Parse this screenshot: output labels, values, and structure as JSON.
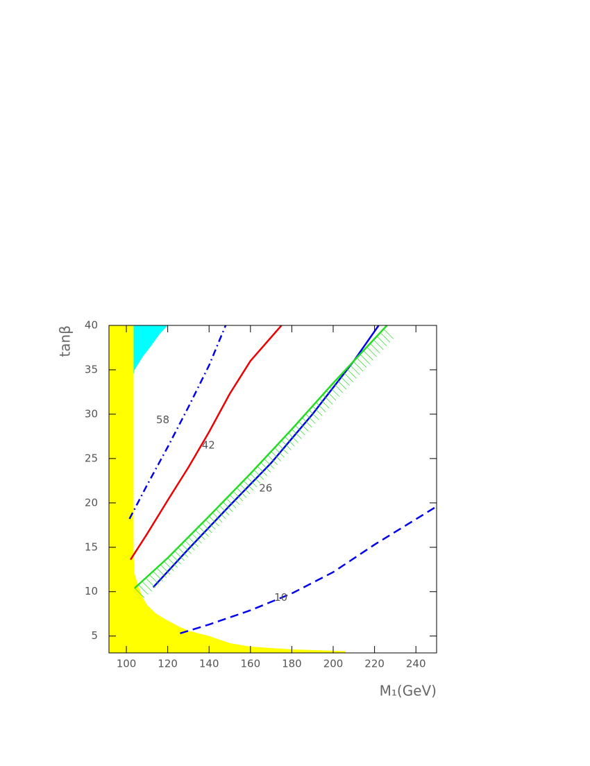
{
  "chart_data": {
    "type": "line",
    "xlabel": "M₁(GeV)",
    "ylabel": "tanβ",
    "xlim": [
      91.6,
      250
    ],
    "ylim": [
      3.1,
      40
    ],
    "xticks": [
      100,
      120,
      140,
      160,
      180,
      200,
      220,
      240
    ],
    "yticks": [
      5,
      10,
      15,
      20,
      25,
      30,
      35,
      40
    ],
    "regions": [
      {
        "color": "#ffff00",
        "x": [
          91.6,
          103.5,
          103.5,
          104,
          106,
          108,
          110,
          114,
          118,
          122,
          126,
          130,
          140,
          150,
          160,
          180,
          206,
          206,
          91.6
        ],
        "y": [
          40,
          40,
          14,
          12,
          10.5,
          9.3,
          8.5,
          7.6,
          7,
          6.5,
          6,
          5.6,
          5,
          4.2,
          3.8,
          3.5,
          3.3,
          3.1,
          3.1
        ]
      },
      {
        "color": "#00ffff",
        "x": [
          103.5,
          120,
          116,
          112,
          108,
          104,
          103.5
        ],
        "y": [
          40,
          40,
          39,
          37.7,
          36.5,
          35,
          34.5
        ]
      }
    ],
    "series": [
      {
        "name": "58",
        "color": "#0000ee",
        "dash": "dashdot",
        "x": [
          101.5,
          110,
          120,
          130,
          140,
          148
        ],
        "values": [
          18.2,
          22,
          26.3,
          30.8,
          35.5,
          40
        ]
      },
      {
        "name": "42",
        "color": "#ee0000",
        "dash": "solid",
        "x": [
          102,
          110,
          120,
          130,
          140,
          150,
          160,
          175
        ],
        "values": [
          13.6,
          16.5,
          20.3,
          24,
          28,
          32.3,
          36,
          40
        ]
      },
      {
        "name": "26",
        "color": "#0000ee",
        "dash": "solid",
        "x": [
          113,
          130,
          150,
          170,
          190,
          210,
          222
        ],
        "values": [
          10.5,
          14.8,
          19.7,
          24.5,
          30,
          36,
          40
        ]
      },
      {
        "color": "#22dd22",
        "dash": "solid",
        "hatch": true,
        "x": [
          104,
          120,
          140,
          160,
          180,
          200,
          226
        ],
        "values": [
          10.4,
          13.8,
          18.5,
          23.3,
          28.3,
          33.5,
          40
        ]
      },
      {
        "name": "10",
        "color": "#0000ee",
        "dash": "dashed",
        "x": [
          126,
          140,
          160,
          180,
          200,
          220,
          250
        ],
        "values": [
          5.3,
          6.3,
          7.9,
          9.8,
          12.2,
          15.3,
          19.6
        ]
      }
    ]
  }
}
